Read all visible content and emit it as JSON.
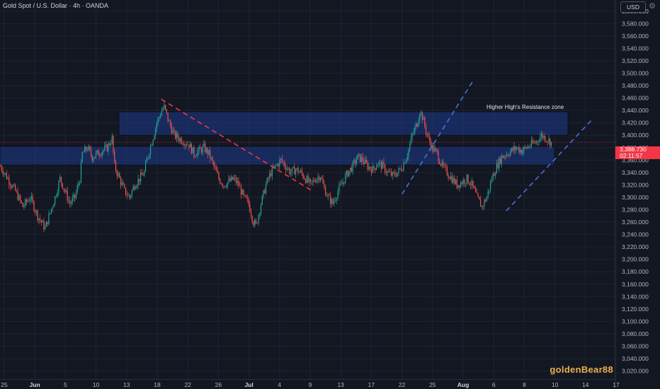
{
  "header": {
    "symbol_title": "Gold Spot / U.S. Dollar · 4h · OANDA",
    "currency": "USD",
    "settings_icon": "gear-icon"
  },
  "current_price": {
    "value": "3,388.730",
    "countdown": "02:11:57"
  },
  "watermark": "goldenBear88",
  "annotations": {
    "resistance_zone_label": "Higher High's Resistance zone"
  },
  "colors": {
    "background": "#131722",
    "up_candle": "#26a69a",
    "down_candle": "#ef5350",
    "zone_fill": "#1e3a8a",
    "downtrend_line": "#f23645",
    "uptrend_line": "#4a6fd8"
  },
  "chart_data": {
    "type": "candlestick",
    "title": "Gold Spot / U.S. Dollar · 4h · OANDA",
    "y_axis": {
      "ticks": [
        "3,600.000",
        "3,580.000",
        "3,560.000",
        "3,540.000",
        "3,520.000",
        "3,500.000",
        "3,480.000",
        "3,460.000",
        "3,440.000",
        "3,420.000",
        "3,400.000",
        "3,380.000",
        "3,360.000",
        "3,340.000",
        "3,320.000",
        "3,300.000",
        "3,280.000",
        "3,260.000",
        "3,240.000",
        "3,220.000",
        "3,200.000",
        "3,180.000",
        "3,160.000",
        "3,140.000",
        "3,120.000",
        "3,100.000",
        "3,080.000",
        "3,060.000",
        "3,040.000",
        "3,020.000"
      ],
      "range": [
        3007,
        3618
      ]
    },
    "x_axis": {
      "ticks": [
        {
          "label": "25",
          "bold": false
        },
        {
          "label": "Jun",
          "bold": true
        },
        {
          "label": "5",
          "bold": false
        },
        {
          "label": "10",
          "bold": false
        },
        {
          "label": "13",
          "bold": false
        },
        {
          "label": "18",
          "bold": false
        },
        {
          "label": "22",
          "bold": false
        },
        {
          "label": "26",
          "bold": false
        },
        {
          "label": "Jul",
          "bold": true
        },
        {
          "label": "4",
          "bold": false
        },
        {
          "label": "9",
          "bold": false
        },
        {
          "label": "13",
          "bold": false
        },
        {
          "label": "17",
          "bold": false
        },
        {
          "label": "22",
          "bold": false
        },
        {
          "label": "25",
          "bold": false
        },
        {
          "label": "Aug",
          "bold": true
        },
        {
          "label": "6",
          "bold": false
        },
        {
          "label": "8",
          "bold": false
        },
        {
          "label": "10",
          "bold": false
        },
        {
          "label": "14",
          "bold": false
        },
        {
          "label": "17",
          "bold": false
        }
      ]
    },
    "key_path": [
      [
        0,
        3350
      ],
      [
        6,
        3330
      ],
      [
        12,
        3310
      ],
      [
        18,
        3285
      ],
      [
        24,
        3300
      ],
      [
        30,
        3270
      ],
      [
        36,
        3250
      ],
      [
        40,
        3275
      ],
      [
        44,
        3300
      ],
      [
        48,
        3330
      ],
      [
        52,
        3310
      ],
      [
        56,
        3290
      ],
      [
        60,
        3300
      ],
      [
        64,
        3330
      ],
      [
        66,
        3370
      ],
      [
        70,
        3380
      ],
      [
        74,
        3365
      ],
      [
        78,
        3370
      ],
      [
        82,
        3375
      ],
      [
        86,
        3380
      ],
      [
        90,
        3395
      ],
      [
        92,
        3350
      ],
      [
        96,
        3330
      ],
      [
        100,
        3310
      ],
      [
        104,
        3300
      ],
      [
        108,
        3320
      ],
      [
        112,
        3330
      ],
      [
        116,
        3340
      ],
      [
        118,
        3360
      ],
      [
        122,
        3390
      ],
      [
        126,
        3420
      ],
      [
        130,
        3440
      ],
      [
        132,
        3445
      ],
      [
        136,
        3420
      ],
      [
        140,
        3400
      ],
      [
        144,
        3395
      ],
      [
        148,
        3390
      ],
      [
        152,
        3385
      ],
      [
        156,
        3370
      ],
      [
        160,
        3375
      ],
      [
        164,
        3380
      ],
      [
        168,
        3370
      ],
      [
        172,
        3350
      ],
      [
        176,
        3330
      ],
      [
        180,
        3320
      ],
      [
        184,
        3325
      ],
      [
        188,
        3330
      ],
      [
        192,
        3320
      ],
      [
        196,
        3300
      ],
      [
        200,
        3290
      ],
      [
        204,
        3260
      ],
      [
        206,
        3255
      ],
      [
        210,
        3290
      ],
      [
        214,
        3320
      ],
      [
        218,
        3340
      ],
      [
        222,
        3350
      ],
      [
        226,
        3360
      ],
      [
        230,
        3350
      ],
      [
        234,
        3340
      ],
      [
        238,
        3345
      ],
      [
        242,
        3340
      ],
      [
        246,
        3330
      ],
      [
        250,
        3320
      ],
      [
        254,
        3330
      ],
      [
        258,
        3335
      ],
      [
        260,
        3320
      ],
      [
        264,
        3300
      ],
      [
        268,
        3290
      ],
      [
        272,
        3310
      ],
      [
        276,
        3325
      ],
      [
        280,
        3340
      ],
      [
        284,
        3350
      ],
      [
        288,
        3365
      ],
      [
        292,
        3360
      ],
      [
        296,
        3350
      ],
      [
        300,
        3345
      ],
      [
        304,
        3355
      ],
      [
        308,
        3350
      ],
      [
        312,
        3340
      ],
      [
        316,
        3335
      ],
      [
        320,
        3340
      ],
      [
        324,
        3350
      ],
      [
        328,
        3370
      ],
      [
        332,
        3400
      ],
      [
        336,
        3420
      ],
      [
        338,
        3440
      ],
      [
        340,
        3430
      ],
      [
        344,
        3400
      ],
      [
        348,
        3380
      ],
      [
        352,
        3370
      ],
      [
        356,
        3350
      ],
      [
        360,
        3340
      ],
      [
        364,
        3330
      ],
      [
        368,
        3320
      ],
      [
        372,
        3325
      ],
      [
        376,
        3330
      ],
      [
        380,
        3320
      ],
      [
        384,
        3300
      ],
      [
        388,
        3285
      ],
      [
        392,
        3300
      ],
      [
        396,
        3330
      ],
      [
        400,
        3350
      ],
      [
        404,
        3365
      ],
      [
        408,
        3370
      ],
      [
        412,
        3375
      ],
      [
        416,
        3380
      ],
      [
        420,
        3375
      ],
      [
        424,
        3380
      ],
      [
        428,
        3385
      ],
      [
        432,
        3390
      ],
      [
        436,
        3400
      ],
      [
        440,
        3395
      ],
      [
        444,
        3388
      ]
    ],
    "n_candles": 445,
    "current_price": 3388.73,
    "resistance_zones": [
      {
        "label": "Higher High's Resistance zone",
        "low": 3400,
        "high": 3438
      },
      {
        "label": "",
        "low": 3352,
        "high": 3382
      }
    ],
    "trendlines": [
      {
        "style": "dashed",
        "color": "red",
        "from": {
          "candle": 130,
          "price": 3458
        },
        "to": {
          "candle": 252,
          "price": 3310
        }
      },
      {
        "style": "dashed",
        "color": "blue",
        "from": {
          "candle": 324,
          "price": 3305
        },
        "to": {
          "candle": 382,
          "price": 3490
        }
      },
      {
        "style": "dashed",
        "color": "blue",
        "from": {
          "candle": 408,
          "price": 3278
        },
        "to": {
          "candle": 478,
          "price": 3427
        }
      }
    ],
    "grid": true
  }
}
